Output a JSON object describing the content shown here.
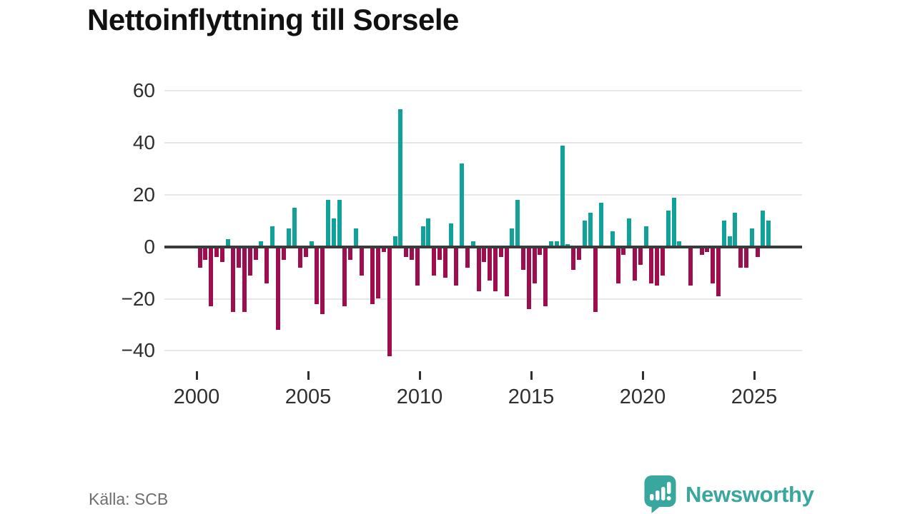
{
  "title": "Nettoinflyttning till Sorsele",
  "source": "Källa: SCB",
  "logo": {
    "text": "Newsworthy"
  },
  "colors": {
    "positive_bar": "#10a29a",
    "negative_bar": "#9e0d4d",
    "zero_line": "#3a3a3a",
    "gridline": "#e7e7e7",
    "axis_text": "#2f2f2f",
    "source_text": "#6e6e6e",
    "logo_teal": "#38a79e",
    "background": "#ffffff"
  },
  "chart_data": {
    "type": "bar",
    "title": "Nettoinflyttning till Sorsele",
    "xlabel": "",
    "ylabel": "",
    "frequency": "quarterly",
    "period_start": "2000 Q1",
    "period_end": "2025 Q3",
    "ylim": [
      -50,
      65
    ],
    "grid": true,
    "legend": "none",
    "y_ticks": [
      60,
      40,
      20,
      0,
      -20,
      -40
    ],
    "x_ticks": [
      2000,
      2005,
      2010,
      2015,
      2020,
      2025
    ],
    "values": [
      -8,
      -5,
      -23,
      -4,
      -6,
      3,
      -25,
      -8,
      -25,
      -11,
      -5,
      2,
      -14,
      8,
      -32,
      -5,
      7,
      15,
      -8,
      -4,
      2,
      -22,
      -26,
      18,
      11,
      18,
      -23,
      -5,
      7,
      -11,
      0,
      -22,
      -20,
      -2,
      -42,
      4,
      53,
      -4,
      -5,
      -15,
      8,
      11,
      -11,
      -5,
      -12,
      9,
      -15,
      32,
      -8,
      2,
      -17,
      -6,
      -13,
      -17,
      -4,
      -19,
      7,
      18,
      -9,
      -24,
      -14,
      -3,
      -23,
      2,
      2,
      39,
      1,
      -9,
      -5,
      10,
      13,
      -25,
      17,
      0,
      6,
      -14,
      -3,
      11,
      -13,
      -7,
      8,
      -14,
      -15,
      -11,
      14,
      19,
      2,
      0,
      -15,
      0,
      -3,
      -2,
      -14,
      -19,
      10,
      4,
      13,
      -8,
      -8,
      7,
      -4,
      14,
      10
    ]
  }
}
